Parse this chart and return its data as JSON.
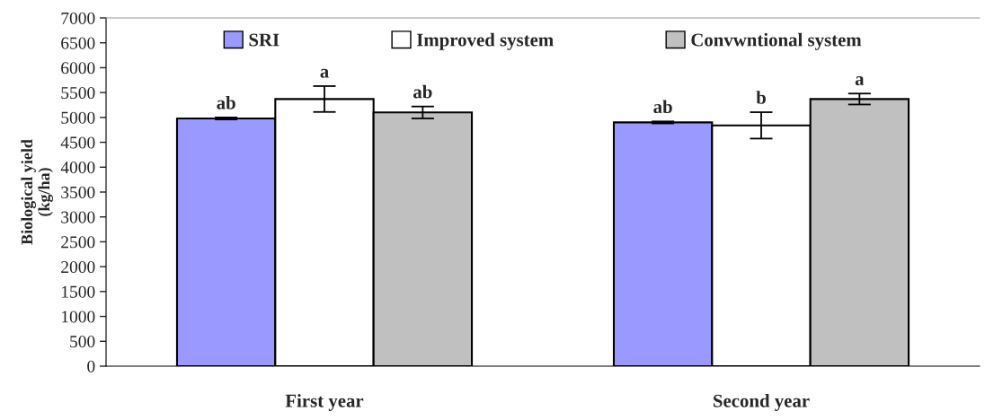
{
  "chart_data": {
    "type": "bar",
    "ylabel": "Biological yield\n(kg/ha)",
    "categories": [
      "First year",
      "Second year"
    ],
    "series": [
      {
        "name": "SRI",
        "color": "#9999ff",
        "values": [
          4980,
          4900
        ],
        "errors": [
          20,
          20
        ],
        "value_labels": [
          "ab",
          "ab"
        ]
      },
      {
        "name": "Improved system",
        "color": "#ffffff",
        "values": [
          5370,
          4840
        ],
        "errors": [
          260,
          265
        ],
        "value_labels": [
          "a",
          "b"
        ]
      },
      {
        "name": "Convwntional system",
        "color": "#c0c0c0",
        "values": [
          5100,
          5370
        ],
        "errors": [
          120,
          110
        ],
        "value_labels": [
          "ab",
          "a"
        ]
      }
    ],
    "ylim": [
      0,
      7000
    ],
    "yticks": [
      0,
      500,
      1000,
      1500,
      2000,
      2500,
      3000,
      3500,
      4000,
      4500,
      5000,
      5500,
      6000,
      6500,
      7000
    ],
    "grid": false,
    "legend": "top"
  }
}
